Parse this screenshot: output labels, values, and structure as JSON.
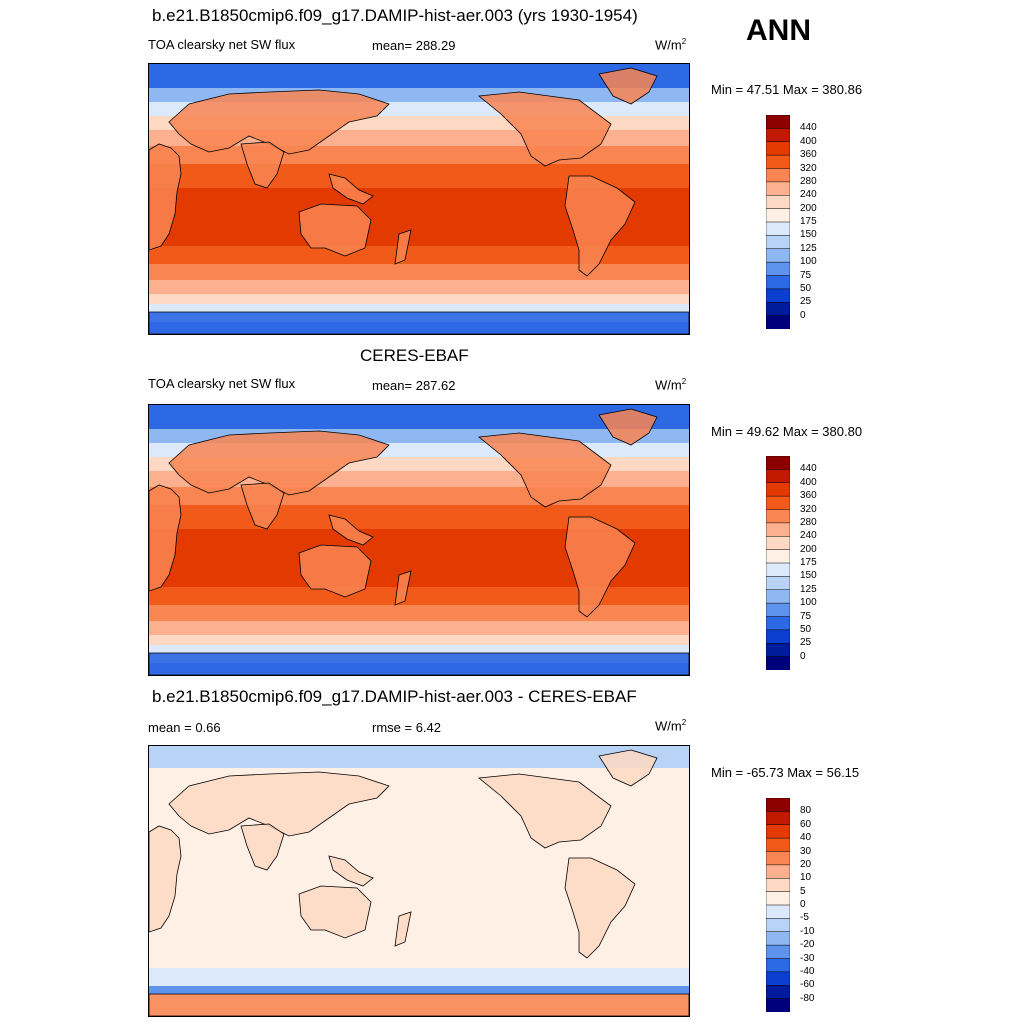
{
  "season": "ANN",
  "panels": [
    {
      "title": "b.e21.B1850cmip6.f09_g17.DAMIP-hist-aer.003 (yrs 1930-1954)",
      "left_label": "TOA clearsky net SW flux",
      "center_label": "mean= 288.29",
      "units": "W/m",
      "units_sup": "2",
      "minmax": "Min =  47.51 Max = 380.86",
      "scale": "abs"
    },
    {
      "title": "CERES-EBAF",
      "left_label": "TOA clearsky net SW flux",
      "center_label": "mean= 287.62",
      "units": "W/m",
      "units_sup": "2",
      "minmax": "Min =  49.62 Max = 380.80",
      "scale": "abs"
    },
    {
      "title": "b.e21.B1850cmip6.f09_g17.DAMIP-hist-aer.003 - CERES-EBAF",
      "left_label": "mean =   0.66",
      "center_label": "rmse =   6.42",
      "units": "W/m",
      "units_sup": "2",
      "minmax": "Min = -65.73 Max =  56.15",
      "scale": "diff"
    }
  ],
  "colorbars": {
    "abs": {
      "labels": [
        "440",
        "400",
        "360",
        "320",
        "280",
        "240",
        "200",
        "175",
        "150",
        "125",
        "100",
        "75",
        "50",
        "25",
        "0"
      ],
      "colors": [
        "#8c0000",
        "#c21a00",
        "#e23a00",
        "#f25a1a",
        "#f98552",
        "#fdb090",
        "#fdd8c2",
        "#fff0e6",
        "#dbe9fb",
        "#b9d3f7",
        "#8fb7f2",
        "#5d93ec",
        "#2e69e4",
        "#0a3fcf",
        "#001c9c",
        "#00007a"
      ]
    },
    "diff": {
      "labels": [
        "80",
        "60",
        "40",
        "30",
        "20",
        "10",
        "5",
        "0",
        "-5",
        "-10",
        "-20",
        "-30",
        "-40",
        "-60",
        "-80"
      ],
      "colors": [
        "#8c0000",
        "#c21a00",
        "#e23a00",
        "#f25a1a",
        "#f98552",
        "#fdb090",
        "#fdd8c2",
        "#fff0e6",
        "#dbe9fb",
        "#b9d3f7",
        "#8fb7f2",
        "#5d93ec",
        "#2e69e4",
        "#0a3fcf",
        "#001c9c",
        "#00007a"
      ]
    }
  }
}
